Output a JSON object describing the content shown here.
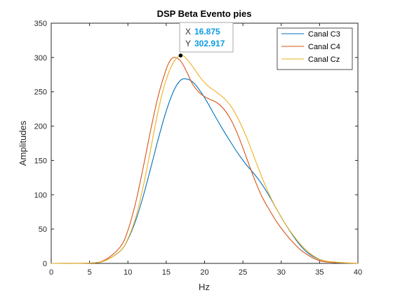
{
  "chart_data": {
    "type": "line",
    "title": "DSP Beta Evento pies",
    "xlabel": "Hz",
    "ylabel": "Amplitudes",
    "xlim": [
      0,
      40
    ],
    "ylim": [
      0,
      350
    ],
    "x_ticks": [
      "0",
      "5",
      "10",
      "15",
      "20",
      "25",
      "30",
      "35",
      "40"
    ],
    "y_ticks": [
      "0",
      "50",
      "100",
      "150",
      "200",
      "250",
      "300",
      "350"
    ],
    "grid": false,
    "legend_position": "top-right",
    "series": [
      {
        "name": "Canal C3",
        "color": "#0072bd",
        "points": [
          [
            0,
            0
          ],
          [
            5,
            0.5
          ],
          [
            7,
            4
          ],
          [
            9,
            18
          ],
          [
            10,
            35
          ],
          [
            11,
            62
          ],
          [
            12,
            98
          ],
          [
            13,
            140
          ],
          [
            14,
            183
          ],
          [
            15,
            222
          ],
          [
            16,
            252
          ],
          [
            16.8,
            266
          ],
          [
            17.5,
            269
          ],
          [
            18.5,
            264
          ],
          [
            19.5,
            250
          ],
          [
            20.5,
            232
          ],
          [
            21.5,
            212
          ],
          [
            22.5,
            193
          ],
          [
            23.5,
            175
          ],
          [
            24.5,
            158
          ],
          [
            25.5,
            143
          ],
          [
            26.5,
            130
          ],
          [
            27.5,
            115
          ],
          [
            28.5,
            97
          ],
          [
            29.5,
            77
          ],
          [
            30.5,
            58
          ],
          [
            31.5,
            41
          ],
          [
            32.5,
            26
          ],
          [
            33.5,
            15
          ],
          [
            34.5,
            8
          ],
          [
            35.5,
            4
          ],
          [
            37,
            1
          ],
          [
            40,
            0
          ]
        ]
      },
      {
        "name": "Canal C4",
        "color": "#d95319",
        "points": [
          [
            0,
            0
          ],
          [
            5,
            0.5
          ],
          [
            7,
            5
          ],
          [
            9,
            24
          ],
          [
            10,
            48
          ],
          [
            11,
            88
          ],
          [
            12,
            140
          ],
          [
            13,
            196
          ],
          [
            14,
            246
          ],
          [
            15,
            283
          ],
          [
            15.6,
            297
          ],
          [
            16.2,
            300
          ],
          [
            17,
            293
          ],
          [
            17.8,
            276
          ],
          [
            18.5,
            260
          ],
          [
            19.5,
            247
          ],
          [
            20.5,
            240
          ],
          [
            21.5,
            235
          ],
          [
            22.5,
            225
          ],
          [
            23.5,
            208
          ],
          [
            24.5,
            183
          ],
          [
            25.5,
            153
          ],
          [
            26.5,
            123
          ],
          [
            27.5,
            97
          ],
          [
            28.5,
            77
          ],
          [
            29.5,
            59
          ],
          [
            30.5,
            44
          ],
          [
            31.5,
            31
          ],
          [
            32.5,
            20
          ],
          [
            33.5,
            12
          ],
          [
            34.5,
            6
          ],
          [
            36,
            2
          ],
          [
            40,
            0
          ]
        ]
      },
      {
        "name": "Canal Cz",
        "color": "#edb120",
        "points": [
          [
            0,
            0
          ],
          [
            5,
            0.5
          ],
          [
            7,
            4
          ],
          [
            9,
            18
          ],
          [
            10,
            36
          ],
          [
            11,
            66
          ],
          [
            12,
            112
          ],
          [
            13,
            168
          ],
          [
            14,
            225
          ],
          [
            15,
            268
          ],
          [
            16,
            294
          ],
          [
            16.875,
            302.917
          ],
          [
            17.5,
            300
          ],
          [
            18.5,
            286
          ],
          [
            19.5,
            270
          ],
          [
            20.5,
            258
          ],
          [
            21.5,
            250
          ],
          [
            22.5,
            241
          ],
          [
            23.5,
            228
          ],
          [
            24.5,
            208
          ],
          [
            25.5,
            183
          ],
          [
            26.5,
            154
          ],
          [
            27.5,
            125
          ],
          [
            28.5,
            99
          ],
          [
            29.5,
            77
          ],
          [
            30.5,
            58
          ],
          [
            31.5,
            42
          ],
          [
            32.5,
            28
          ],
          [
            33.5,
            17
          ],
          [
            34.5,
            9
          ],
          [
            36,
            3
          ],
          [
            40,
            0
          ]
        ]
      }
    ],
    "datatip": {
      "x_key": "X",
      "x_value": "16.875",
      "y_key": "Y",
      "y_value": "302.917",
      "x": 16.875,
      "y": 302.917
    }
  }
}
